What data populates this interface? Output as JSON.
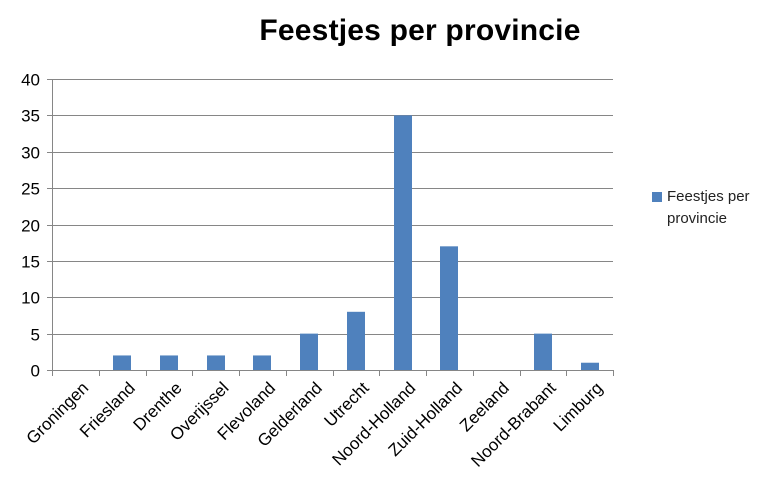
{
  "chart_data": {
    "type": "bar",
    "title": "Feestjes per provincie",
    "xlabel": "",
    "ylabel": "",
    "ylim": [
      0,
      40
    ],
    "ytick_values": [
      0,
      5,
      10,
      15,
      20,
      25,
      30,
      35,
      40
    ],
    "grid": true,
    "legend_position": "right",
    "categories": [
      "Groningen",
      "Friesland",
      "Drenthe",
      "Overijssel",
      "Flevoland",
      "Gelderland",
      "Utrecht",
      "Noord-Holland",
      "Zuid-Holland",
      "Zeeland",
      "Noord-Brabant",
      "Limburg"
    ],
    "series": [
      {
        "name": "Feestjes per provincie",
        "values": [
          0,
          2,
          2,
          2,
          2,
          5,
          8,
          35,
          17,
          0,
          5,
          1
        ],
        "color": "#4F81BD"
      }
    ]
  },
  "colors": {
    "bar": "#4F81BD",
    "gridline": "#868686",
    "axis": "#868686",
    "text": "#000000"
  }
}
